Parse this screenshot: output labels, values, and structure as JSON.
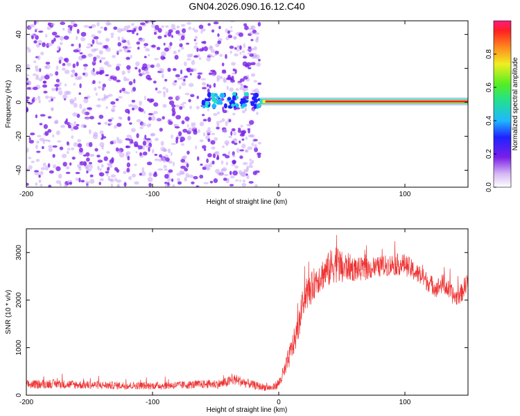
{
  "title": "GN04.2026.090.16.12.C40",
  "colors": {
    "snr_line": "#ee3333",
    "dot_noise": "#7a1fe8",
    "dot_light": "#c9a6f5",
    "band_core": "#e8283c",
    "band_edge": "#22e0c8",
    "band_glow": "#ffee33"
  },
  "chart_data": [
    {
      "name": "spectrogram",
      "type": "heatmap",
      "xlabel": "Height of straight line (km)",
      "ylabel": "Frequency (Hz)",
      "xlim": [
        -200,
        150
      ],
      "ylim": [
        -50,
        48
      ],
      "xticks": [
        -200,
        -100,
        0,
        100
      ],
      "xtick_labels": [
        "-200",
        "-100",
        "0",
        "100"
      ],
      "yticks": [
        -40,
        -20,
        0,
        20,
        40
      ],
      "ytick_labels": [
        "-40",
        "-20",
        "0",
        "20",
        "40"
      ],
      "noise_region_x": [
        -200,
        -15
      ],
      "tone_cluster_x": [
        -60,
        -15
      ],
      "carrier_band": {
        "x_start": -15,
        "x_end": 150,
        "frequency": 0.5,
        "amplitude": 1.0
      },
      "colorbar": {
        "label": "Normalized spectral amplitude",
        "range": [
          0,
          1
        ],
        "ticks": [
          0.0,
          0.2,
          0.4,
          0.6,
          0.8
        ],
        "tick_labels": [
          "0.0",
          "0.2",
          "0.4",
          "0.6",
          "0.8"
        ]
      }
    },
    {
      "name": "snr",
      "type": "line",
      "xlabel": "Height of straight line (km)",
      "ylabel": "SNR (10 * v/v)",
      "xlim": [
        -200,
        150
      ],
      "ylim": [
        0,
        3500
      ],
      "xticks": [
        -200,
        -100,
        0,
        100
      ],
      "xtick_labels": [
        "-200",
        "-100",
        "0",
        "100"
      ],
      "yticks": [
        0,
        1000,
        2000,
        3000
      ],
      "ytick_labels": [
        "0",
        "1000",
        "2000",
        "3000"
      ],
      "series": [
        {
          "name": "SNR",
          "x": [
            -200,
            -180,
            -160,
            -140,
            -120,
            -100,
            -80,
            -60,
            -45,
            -35,
            -25,
            -15,
            -5,
            0,
            5,
            10,
            15,
            20,
            25,
            30,
            35,
            40,
            45,
            50,
            55,
            60,
            70,
            80,
            90,
            100,
            105,
            110,
            115,
            120,
            125,
            130,
            135,
            140,
            145,
            150
          ],
          "y": [
            220,
            240,
            220,
            210,
            200,
            200,
            210,
            230,
            240,
            330,
            250,
            180,
            150,
            250,
            520,
            950,
            1350,
            2050,
            2200,
            2450,
            2550,
            2650,
            2800,
            2650,
            2700,
            2650,
            2650,
            2700,
            2750,
            2750,
            2650,
            2550,
            2450,
            2350,
            2250,
            2350,
            2200,
            2050,
            2150,
            2450
          ],
          "noise_amplitude": [
            90,
            95,
            90,
            85,
            80,
            80,
            85,
            90,
            100,
            120,
            100,
            80,
            70,
            110,
            200,
            260,
            300,
            320,
            330,
            340,
            350,
            380,
            420,
            380,
            300,
            260,
            230,
            220,
            230,
            230,
            220,
            210,
            210,
            200,
            200,
            210,
            200,
            190,
            200,
            220
          ]
        }
      ]
    }
  ]
}
